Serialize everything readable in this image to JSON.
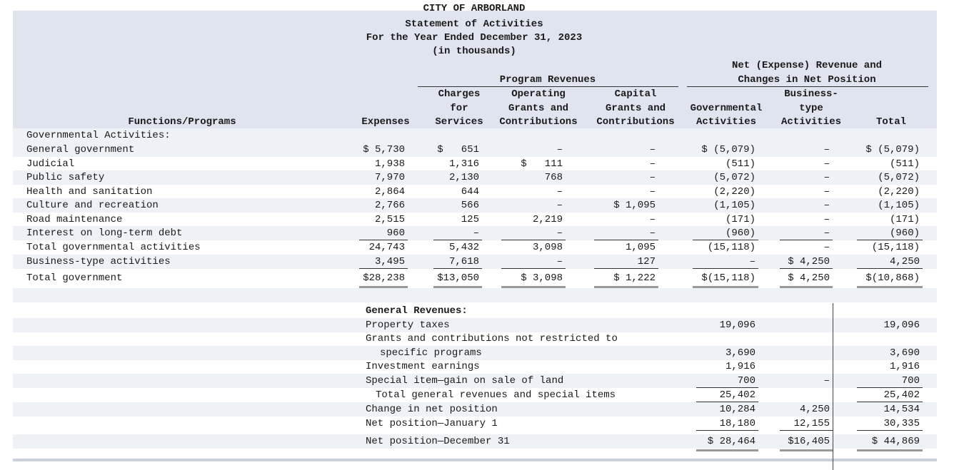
{
  "header": {
    "entity": "CITY OF ARBORLAND",
    "title": "Statement of Activities",
    "period": "For the Year Ended December 31, 2023",
    "units": "(in thousands)"
  },
  "groups": {
    "program_revenues": "Program Revenues",
    "net_position": [
      "Net (Expense) Revenue and",
      "Changes in Net Position"
    ]
  },
  "columns": [
    [
      "Functions/Programs"
    ],
    [
      "Expenses"
    ],
    [
      "Charges",
      "for",
      "Services"
    ],
    [
      "Operating",
      "Grants and",
      "Contributions"
    ],
    [
      "Capital",
      "Grants and",
      "Contributions"
    ],
    [
      "Governmental",
      "Activities"
    ],
    [
      "Business-",
      "type",
      "Activities"
    ],
    [
      "Total"
    ]
  ],
  "activities": {
    "section": "Governmental Activities:",
    "rows": [
      {
        "label": "General government",
        "cells": [
          "$ 5,730",
          "$   651",
          "–",
          "–",
          "$ (5,079)",
          "–",
          "$ (5,079)"
        ]
      },
      {
        "label": "Judicial",
        "cells": [
          "1,938",
          "1,316",
          "$   111",
          "–",
          "(511)",
          "–",
          "(511)"
        ]
      },
      {
        "label": "Public safety",
        "cells": [
          "7,970",
          "2,130",
          "768",
          "–",
          "(5,072)",
          "–",
          "(5,072)"
        ]
      },
      {
        "label": "Health and sanitation",
        "cells": [
          "2,864",
          "644",
          "–",
          "–",
          "(2,220)",
          "–",
          "(2,220)"
        ]
      },
      {
        "label": "Culture and recreation",
        "cells": [
          "2,766",
          "566",
          "–",
          "$ 1,095",
          "(1,105)",
          "–",
          "(1,105)"
        ]
      },
      {
        "label": "Road maintenance",
        "cells": [
          "2,515",
          "125",
          "2,219",
          "–",
          "(171)",
          "–",
          "(171)"
        ]
      },
      {
        "label": "Interest on long-term debt",
        "cells": [
          "960",
          "–",
          "–",
          "–",
          "(960)",
          "–",
          "(960)"
        ]
      },
      {
        "label": "Total governmental activities",
        "cells": [
          "24,743",
          "5,432",
          "3,098",
          "1,095",
          "(15,118)",
          "–",
          "(15,118)"
        ]
      },
      {
        "label": "Business-type activities",
        "cells": [
          "3,495",
          "7,618",
          "–",
          "127",
          "–",
          "$ 4,250",
          "4,250"
        ]
      },
      {
        "label": "Total government",
        "cells": [
          "$28,238",
          "$13,050",
          "$ 3,098",
          "$ 1,222",
          "$(15,118)",
          "$ 4,250",
          "$(10,868)"
        ]
      }
    ]
  },
  "general_revenues": {
    "section": "General Revenues:",
    "rows": [
      {
        "label": "Property taxes",
        "cells": [
          "19,096",
          null,
          "19,096"
        ]
      },
      {
        "label": "Grants and contributions not restricted to",
        "cells": [
          null,
          null,
          null
        ]
      },
      {
        "label": "specific programs",
        "cells": [
          "3,690",
          null,
          "3,690"
        ]
      },
      {
        "label": "Investment earnings",
        "cells": [
          "1,916",
          null,
          "1,916"
        ]
      },
      {
        "label": "Special item—gain on sale of land",
        "cells": [
          "700",
          "–",
          "700"
        ]
      },
      {
        "label": "Total general revenues and special items",
        "cells": [
          "25,402",
          null,
          "25,402"
        ]
      },
      {
        "label": "Change in net position",
        "cells": [
          "10,284",
          "4,250",
          "14,534"
        ]
      },
      {
        "label": "Net position—January 1",
        "cells": [
          "18,180",
          "12,155",
          "30,335"
        ]
      },
      {
        "label": "Net position—December 31",
        "cells": [
          "$ 28,464",
          "$16,405",
          "$ 44,869"
        ]
      }
    ]
  }
}
